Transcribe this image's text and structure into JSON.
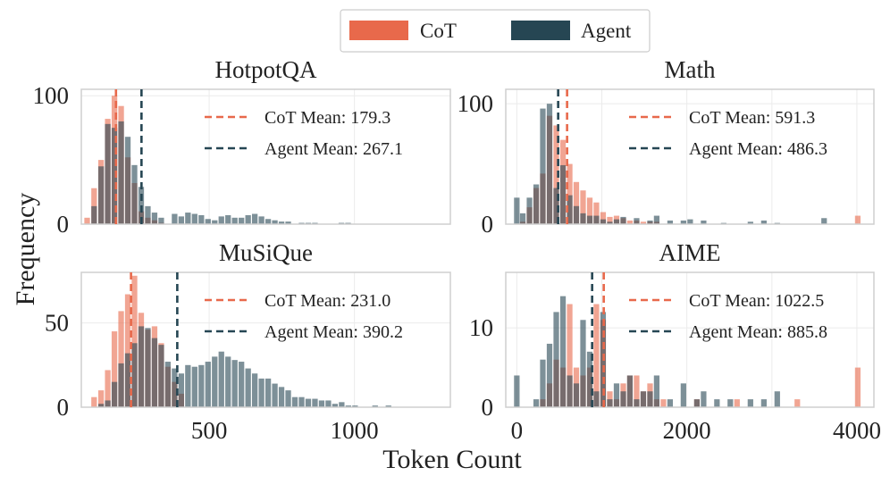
{
  "figure": {
    "ylabel": "Frequency",
    "xlabel": "Token Count"
  },
  "colors": {
    "cot": "#e8694b",
    "agent": "#264653"
  },
  "legend": [
    {
      "name": "CoT",
      "series": "cot"
    },
    {
      "name": "Agent",
      "series": "agent"
    }
  ],
  "chart_data": [
    {
      "type": "bar",
      "title": "HotpotQA",
      "xlim": [
        60,
        1330
      ],
      "ylim": [
        0,
        105
      ],
      "bin_width": 23,
      "yticks": [
        0,
        100
      ],
      "xticks": [],
      "means": [
        {
          "label": "CoT Mean: 179.3",
          "value": 179.3,
          "series": "cot"
        },
        {
          "label": "Agent Mean: 267.1",
          "value": 267.1,
          "series": "agent"
        }
      ],
      "series": [
        {
          "name": "CoT",
          "x": [
            80,
            104,
            128,
            151,
            174,
            197,
            220,
            243,
            266,
            289,
            312,
            335
          ],
          "values": [
            5,
            28,
            50,
            82,
            100,
            92,
            52,
            32,
            10,
            5,
            3,
            1
          ]
        },
        {
          "name": "Agent",
          "x": [
            104,
            128,
            151,
            174,
            197,
            220,
            243,
            266,
            289,
            312,
            335,
            381,
            404,
            427,
            450,
            473,
            496,
            519,
            542,
            565,
            588,
            611,
            634,
            657,
            680,
            703,
            726,
            749,
            772,
            818,
            841,
            864,
            955,
            978
          ],
          "values": [
            14,
            45,
            78,
            75,
            80,
            68,
            46,
            29,
            14,
            9,
            5,
            8,
            6,
            9,
            8,
            7,
            4,
            3,
            6,
            7,
            5,
            5,
            7,
            8,
            6,
            4,
            3,
            2,
            2,
            1,
            1,
            1,
            1,
            1
          ]
        }
      ]
    },
    {
      "type": "bar",
      "title": "Math",
      "xlim": [
        -130,
        4200
      ],
      "ylim": [
        0,
        112
      ],
      "bin_width": 78,
      "yticks": [
        0,
        100
      ],
      "xticks": [],
      "means": [
        {
          "label": "CoT Mean: 591.3",
          "value": 591.3,
          "series": "cot"
        },
        {
          "label": "Agent Mean: 486.3",
          "value": 486.3,
          "series": "agent"
        }
      ],
      "series": [
        {
          "name": "CoT",
          "x": [
            70,
            149,
            228,
            306,
            385,
            464,
            543,
            622,
            700,
            779,
            858,
            936,
            1015,
            1094,
            1173,
            1252,
            1330,
            1409,
            1488,
            1567,
            1645,
            4010
          ],
          "values": [
            2,
            14,
            30,
            42,
            90,
            82,
            70,
            50,
            35,
            28,
            22,
            18,
            10,
            6,
            7,
            5,
            3,
            3,
            2,
            2,
            2,
            7
          ]
        },
        {
          "name": "Agent",
          "x": [
            0,
            70,
            149,
            228,
            306,
            385,
            464,
            543,
            622,
            700,
            779,
            858,
            936,
            1015,
            1094,
            1173,
            1252,
            1409,
            1567,
            1645,
            1803,
            1960,
            2039,
            2197,
            2433,
            2748,
            2906,
            3063,
            3614
          ],
          "values": [
            22,
            9,
            22,
            33,
            96,
            100,
            30,
            49,
            24,
            15,
            9,
            7,
            7,
            4,
            2,
            4,
            6,
            5,
            3,
            7,
            3,
            3,
            4,
            3,
            1,
            2,
            3,
            1,
            5
          ]
        }
      ]
    },
    {
      "type": "bar",
      "title": "MuSiQue",
      "xlim": [
        60,
        1330
      ],
      "ylim": [
        0,
        80
      ],
      "bin_width": 23,
      "yticks": [
        0,
        50
      ],
      "xticks": [
        500,
        1000
      ],
      "means": [
        {
          "label": "CoT Mean: 231.0",
          "value": 231.0,
          "series": "cot"
        },
        {
          "label": "Agent Mean: 390.2",
          "value": 390.2,
          "series": "agent"
        }
      ],
      "series": [
        {
          "name": "CoT",
          "x": [
            104,
            128,
            151,
            174,
            197,
            220,
            243,
            266,
            289,
            312,
            335,
            358,
            381,
            404
          ],
          "values": [
            6,
            10,
            22,
            45,
            57,
            67,
            78,
            56,
            46,
            48,
            38,
            24,
            15,
            8
          ]
        },
        {
          "name": "Agent",
          "x": [
            128,
            151,
            174,
            197,
            220,
            243,
            266,
            289,
            312,
            335,
            358,
            381,
            404,
            427,
            450,
            473,
            496,
            519,
            542,
            565,
            588,
            611,
            634,
            657,
            680,
            703,
            726,
            749,
            772,
            795,
            818,
            841,
            864,
            887,
            910,
            933,
            956,
            979,
            1002,
            1071,
            1117
          ],
          "values": [
            2,
            4,
            15,
            26,
            32,
            38,
            48,
            47,
            41,
            37,
            27,
            23,
            20,
            25,
            24,
            25,
            27,
            30,
            33,
            30,
            28,
            27,
            23,
            20,
            17,
            17,
            14,
            12,
            10,
            6,
            6,
            5,
            5,
            4,
            4,
            2,
            3,
            1,
            1,
            1,
            1
          ]
        }
      ]
    },
    {
      "type": "bar",
      "title": "AIME",
      "xlim": [
        -130,
        4200
      ],
      "ylim": [
        0,
        17
      ],
      "bin_width": 78,
      "yticks": [
        0,
        10
      ],
      "xticks": [
        0,
        2000,
        4000
      ],
      "means": [
        {
          "label": "CoT Mean: 1022.5",
          "value": 1022.5,
          "series": "cot"
        },
        {
          "label": "Agent Mean: 885.8",
          "value": 885.8,
          "series": "agent"
        }
      ],
      "series": [
        {
          "name": "CoT",
          "x": [
            306,
            385,
            464,
            543,
            622,
            700,
            779,
            858,
            936,
            1015,
            1094,
            1173,
            1252,
            1330,
            1409,
            1488,
            1567,
            1645,
            1724,
            2118,
            2590,
            3299,
            4010
          ],
          "values": [
            1,
            3,
            6,
            5,
            13,
            5,
            4,
            5,
            13,
            11,
            2,
            1,
            3,
            4,
            4,
            2,
            3,
            1,
            1,
            1,
            1,
            1,
            5
          ]
        },
        {
          "name": "Agent",
          "x": [
            0,
            228,
            306,
            385,
            464,
            543,
            622,
            700,
            779,
            858,
            936,
            1015,
            1094,
            1173,
            1252,
            1330,
            1409,
            1488,
            1567,
            1645,
            1803,
            1960,
            2118,
            2197,
            2354,
            2511,
            2748,
            2906,
            3063
          ],
          "values": [
            4,
            1,
            6,
            8,
            12,
            14,
            4,
            3,
            11,
            7,
            2,
            12,
            1,
            3,
            2,
            4,
            1,
            2,
            2,
            4,
            1,
            3,
            1,
            2,
            1,
            1,
            1,
            1,
            2
          ]
        }
      ]
    }
  ]
}
